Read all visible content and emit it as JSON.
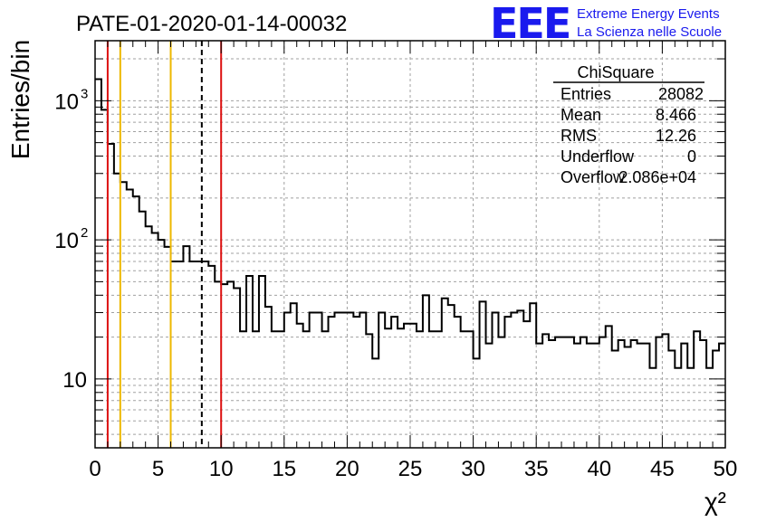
{
  "header": {
    "run_title": "PATE-01-2020-01-14-00032",
    "logo_text": "EEE",
    "project_line1": "Extreme Energy Events",
    "project_line2": "La Scienza nelle Scuole"
  },
  "colors": {
    "histogram": "#000000",
    "grid": "#a0a0a0",
    "red_marker": "#dd1111",
    "yellow_marker": "#eeb800",
    "mean_marker": "#000000",
    "logo_blue": "#1a1aee"
  },
  "stats_box": {
    "title": "ChiSquare",
    "rows": [
      {
        "label": "Entries",
        "value": "28082"
      },
      {
        "label": "Mean",
        "value": "8.466"
      },
      {
        "label": "RMS",
        "value": "12.26"
      },
      {
        "label": "Underflow",
        "value": "0"
      },
      {
        "label": "Overflow",
        "value": "2.086e+04"
      }
    ]
  },
  "chart_data": {
    "type": "histogram",
    "xlabel": "χ²",
    "ylabel": "Entries/bin",
    "xlim": [
      0,
      50
    ],
    "ylim": [
      3.2,
      2700
    ],
    "y_scale": "log",
    "grid": true,
    "x_ticks": [
      0,
      5,
      10,
      15,
      20,
      25,
      30,
      35,
      40,
      45,
      50
    ],
    "y_tick_labels": [
      {
        "value": 10,
        "base": "10",
        "exp": ""
      },
      {
        "value": 100,
        "base": "10",
        "exp": "2"
      },
      {
        "value": 1000,
        "base": "10",
        "exp": "3"
      }
    ],
    "bin_width": 0.5,
    "bin_values": [
      1430,
      860,
      490,
      300,
      260,
      230,
      205,
      160,
      125,
      112,
      100,
      89,
      70,
      70,
      90,
      70,
      70,
      70,
      65,
      50,
      48,
      50,
      45,
      22,
      55,
      22,
      55,
      33,
      22,
      22,
      30,
      35,
      25,
      22,
      30,
      30,
      22,
      28,
      30,
      30,
      30,
      28,
      30,
      21,
      14,
      30,
      23,
      28,
      23,
      25,
      25,
      22,
      40,
      22,
      22,
      38,
      34,
      28,
      22,
      22,
      14,
      36,
      18,
      30,
      20,
      28,
      30,
      31,
      26,
      35,
      18,
      21,
      19,
      20,
      20,
      20,
      18,
      20,
      18,
      18,
      20,
      24,
      16,
      19,
      17,
      19,
      18,
      18,
      12,
      20,
      21,
      16,
      12,
      18,
      12,
      22,
      19,
      12,
      16,
      18
    ],
    "vertical_markers": [
      {
        "x": 1.0,
        "style": "red_solid"
      },
      {
        "x": 2.0,
        "style": "yellow_solid"
      },
      {
        "x": 6.0,
        "style": "yellow_solid"
      },
      {
        "x": 8.466,
        "style": "black_dashed"
      },
      {
        "x": 10.0,
        "style": "red_solid"
      }
    ]
  }
}
